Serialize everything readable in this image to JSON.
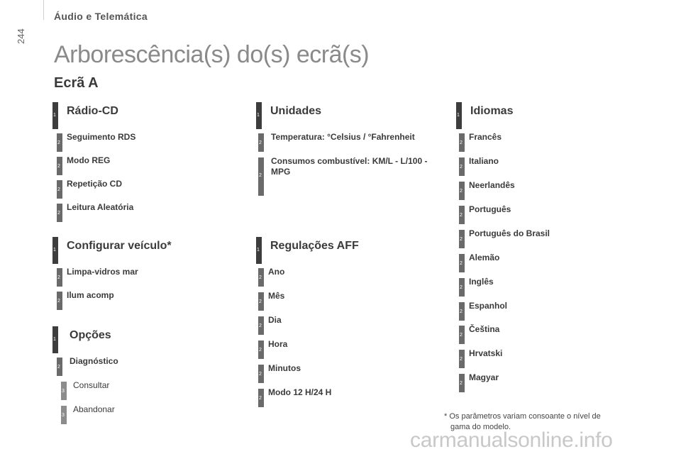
{
  "page_number": "244",
  "header_title": "Áudio e Telemática",
  "page_title": "Arborescência(s) do(s) ecrã(s)",
  "section_title": "Ecrã A",
  "levels": {
    "l1": "1",
    "l2": "2",
    "l3": "3"
  },
  "radio": {
    "title": "Rádio-CD",
    "items": [
      "Seguimento RDS",
      "Modo REG",
      "Repetição CD",
      "Leitura Aleatória"
    ]
  },
  "vehicle": {
    "title": "Configurar veículo*",
    "items": [
      "Limpa-vidros mar",
      "Ilum acomp"
    ]
  },
  "options": {
    "title": "Opções",
    "item": "Diagnóstico",
    "subitems": [
      "Consultar",
      "Abandonar"
    ]
  },
  "units": {
    "title": "Unidades",
    "items": [
      "Temperatura: °Celsius / °Fahrenheit",
      "Consumos combustível: KM/L - L/100 - MPG"
    ]
  },
  "aff": {
    "title": "Regulações AFF",
    "items": [
      "Ano",
      "Mês",
      "Dia",
      "Hora",
      "Minutos",
      "Modo 12 H/24 H"
    ]
  },
  "languages": {
    "title": "Idiomas",
    "items": [
      "Francês",
      "Italiano",
      "Neerlandês",
      "Português",
      "Português do Brasil",
      "Alemão",
      "Inglês",
      "Espanhol",
      "Čeština",
      "Hrvatski",
      "Magyar"
    ]
  },
  "footnote": {
    "line1": "* Os parâmetros variam consoante o nível de",
    "line2": "gama do modelo."
  },
  "watermark": "carmanualsonline.info"
}
